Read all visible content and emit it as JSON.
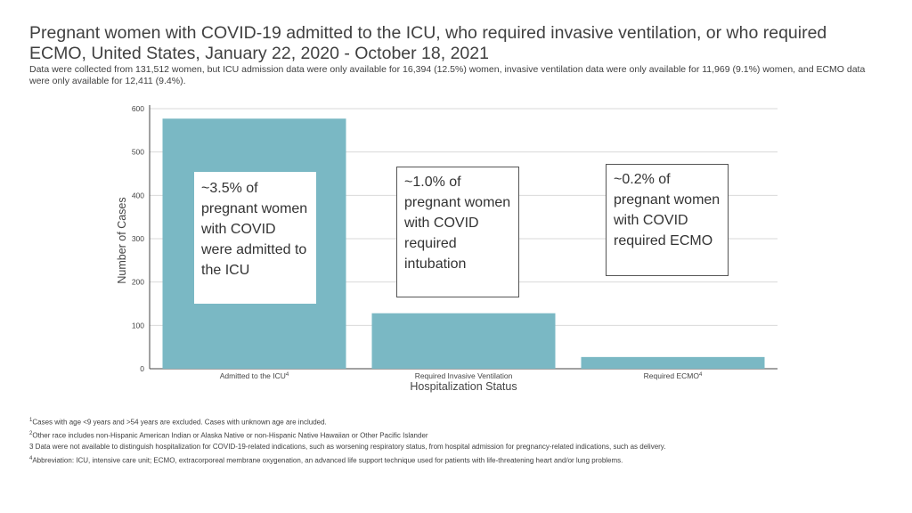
{
  "title": "Pregnant women with COVID-19 admitted to the ICU, who required invasive ventilation, or who required ECMO, United States, January 22, 2020 - October 18, 2021",
  "subtitle": "Data were collected from 131,512 women, but ICU admission data were only available for 16,394 (12.5%) women, invasive ventilation data were only available for 11,969 (9.1%) women, and ECMO data were only available for 12,411 (9.4%).",
  "colors": {
    "bar": "#7ab8c4",
    "grid": "#d9d9d9",
    "axis": "#444444"
  },
  "chart_data": {
    "type": "bar",
    "categories": [
      "Admitted to the ICU",
      "Required Invasive Ventilation",
      "Required ECMO"
    ],
    "category_superscripts": [
      "4",
      "",
      "4"
    ],
    "values": [
      577,
      128,
      27
    ],
    "xlabel": "Hospitalization Status",
    "ylabel": "Number of Cases",
    "ylim": [
      0,
      600
    ],
    "yticks": [
      0,
      100,
      200,
      300,
      400,
      500,
      600
    ],
    "grid": true
  },
  "callouts": [
    "~3.5% of pregnant women with COVID were admitted to the ICU",
    "~1.0% of pregnant women with COVID required intubation",
    "~0.2% of pregnant women with COVID required ECMO"
  ],
  "footnotes": [
    {
      "marker": "1",
      "text": "Cases with age <9 years and >54 years are excluded. Cases with unknown age are included."
    },
    {
      "marker": "2",
      "text": "Other race includes non-Hispanic American Indian or Alaska Native or non-Hispanic Native Hawaiian or Other Pacific Islander"
    },
    {
      "marker": "3",
      "text": " Data were not available to distinguish hospitalization for COVID-19-related indications, such as worsening respiratory status, from hospital admission for pregnancy-related indications, such as delivery."
    },
    {
      "marker": "4",
      "text": "Abbreviation: ICU, intensive care unit; ECMO, extracorporeal membrane oxygenation, an advanced life support technique used for patients with life-threatening heart and/or lung problems."
    }
  ]
}
